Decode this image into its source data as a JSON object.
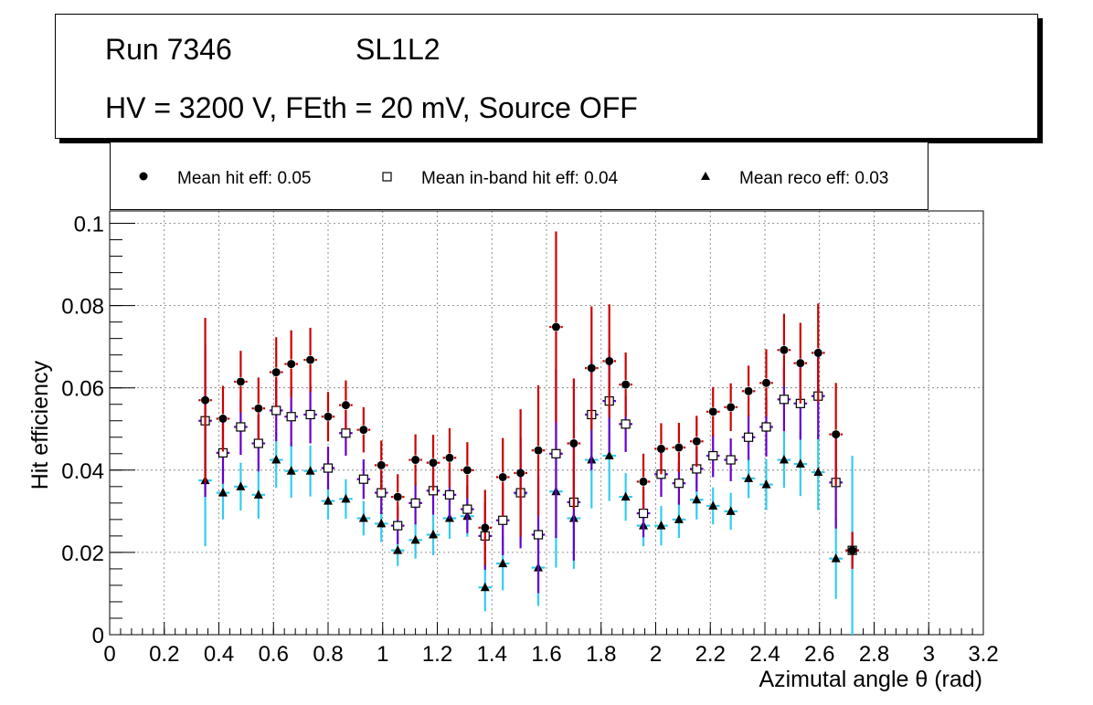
{
  "header": {
    "run": "Run 7346",
    "superlayer": "SL1L2",
    "conditions": "HV = 3200 V, FEth = 20 mV, Source OFF"
  },
  "legend": [
    {
      "marker": "filled-circle",
      "label": "Mean hit  eff: 0.05"
    },
    {
      "marker": "open-square",
      "label": "Mean in-band hit eff: 0.04"
    },
    {
      "marker": "filled-triangle",
      "label": "Mean reco eff: 0.03"
    }
  ],
  "colors": {
    "hit_error": "#cc0000",
    "inband_error": "#6600cc",
    "reco_error": "#33ccee",
    "marker": "#000000"
  },
  "chart_data": {
    "type": "scatter",
    "title": "",
    "xlabel": "Azimutal angle θ (rad)",
    "ylabel": "Hit efficiency",
    "xlim": [
      0,
      3.2
    ],
    "ylim": [
      0,
      0.103
    ],
    "xticks": [
      "0",
      "0.2",
      "0.4",
      "0.6",
      "0.8",
      "1",
      "1.2",
      "1.4",
      "1.6",
      "1.8",
      "2",
      "2.2",
      "2.4",
      "2.6",
      "2.8",
      "3",
      "3.2"
    ],
    "yticks": [
      "0",
      "0.02",
      "0.04",
      "0.06",
      "0.08",
      "0.1"
    ],
    "grid": true,
    "bin_half_width": 0.0245,
    "x": [
      0.35,
      0.415,
      0.48,
      0.545,
      0.61,
      0.665,
      0.735,
      0.8,
      0.865,
      0.93,
      0.995,
      1.055,
      1.12,
      1.185,
      1.245,
      1.31,
      1.375,
      1.44,
      1.505,
      1.57,
      1.635,
      1.7,
      1.765,
      1.83,
      1.89,
      1.955,
      2.02,
      2.085,
      2.15,
      2.21,
      2.275,
      2.34,
      2.405,
      2.47,
      2.53,
      2.595,
      2.66,
      2.72
    ],
    "series": [
      {
        "name": "Mean hit  eff: 0.05",
        "marker": "filled-circle",
        "values": [
          0.057,
          0.0525,
          0.0615,
          0.055,
          0.0638,
          0.0658,
          0.0668,
          0.053,
          0.0558,
          0.0498,
          0.0412,
          0.0335,
          0.0425,
          0.0418,
          0.043,
          0.04,
          0.026,
          0.0383,
          0.0393,
          0.0448,
          0.0748,
          0.0465,
          0.0648,
          0.0665,
          0.0608,
          0.0372,
          0.0452,
          0.0455,
          0.047,
          0.0542,
          0.0553,
          0.0592,
          0.0612,
          0.0692,
          0.066,
          0.0685,
          0.0487,
          0.0205
        ],
        "err": [
          0.02,
          0.008,
          0.0075,
          0.0075,
          0.0085,
          0.0082,
          0.0078,
          0.006,
          0.006,
          0.0055,
          0.006,
          0.0055,
          0.0062,
          0.0068,
          0.0072,
          0.0068,
          0.0092,
          0.0095,
          0.0155,
          0.0158,
          0.0232,
          0.0158,
          0.015,
          0.0138,
          0.0078,
          0.0068,
          0.0062,
          0.006,
          0.0062,
          0.006,
          0.0058,
          0.0062,
          0.0082,
          0.0088,
          0.0098,
          0.012,
          0.0125,
          0.0045
        ]
      },
      {
        "name": "Mean in-band hit eff: 0.04",
        "marker": "open-square",
        "values": [
          0.052,
          0.0442,
          0.0505,
          0.0465,
          0.0545,
          0.053,
          0.0535,
          0.0405,
          0.049,
          0.0378,
          0.0345,
          0.0265,
          0.032,
          0.035,
          0.034,
          0.0305,
          0.024,
          0.0278,
          0.0345,
          0.0243,
          0.044,
          0.0322,
          0.0535,
          0.0568,
          0.0512,
          0.0295,
          0.039,
          0.0368,
          0.0403,
          0.0435,
          0.0425,
          0.048,
          0.0505,
          0.0572,
          0.0562,
          0.058,
          0.037,
          0.0205
        ],
        "err": [
          0.0185,
          0.0075,
          0.0068,
          0.0068,
          0.0075,
          0.0072,
          0.007,
          0.0052,
          0.0055,
          0.0048,
          0.0052,
          0.0045,
          0.0052,
          0.0058,
          0.0058,
          0.0058,
          0.0082,
          0.0085,
          0.0135,
          0.0142,
          0.0205,
          0.0142,
          0.0135,
          0.0125,
          0.0068,
          0.0058,
          0.0055,
          0.0052,
          0.0055,
          0.0052,
          0.0052,
          0.0055,
          0.0072,
          0.0078,
          0.0088,
          0.0105,
          0.0112,
          0.004
        ]
      },
      {
        "name": "Mean reco eff: 0.03",
        "marker": "filled-triangle",
        "values": [
          0.0375,
          0.0345,
          0.036,
          0.034,
          0.0425,
          0.0398,
          0.0398,
          0.0325,
          0.033,
          0.0283,
          0.027,
          0.0205,
          0.023,
          0.0243,
          0.0283,
          0.0288,
          0.0115,
          0.0173,
          0.0343,
          0.0163,
          0.0348,
          0.0283,
          0.0425,
          0.0435,
          0.0335,
          0.0265,
          0.0265,
          0.028,
          0.0328,
          0.0313,
          0.03,
          0.038,
          0.0365,
          0.0425,
          0.0415,
          0.0395,
          0.0185,
          0.0205
        ]
      }
    ],
    "reco_err_lo": [
      0.016,
      0.0065,
      0.0058,
      0.0058,
      0.0068,
      0.0065,
      0.0062,
      0.0045,
      0.0048,
      0.0042,
      0.0045,
      0.0038,
      0.0045,
      0.005,
      0.005,
      0.005,
      0.0058,
      0.0065,
      0.0115,
      0.0093,
      0.0185,
      0.0123,
      0.0118,
      0.011,
      0.0058,
      0.005,
      0.0048,
      0.0045,
      0.0048,
      0.0045,
      0.0045,
      0.0048,
      0.0062,
      0.0068,
      0.0078,
      0.0092,
      0.0098,
      0.0205
    ],
    "reco_err_hi": [
      0.016,
      0.0065,
      0.0058,
      0.0058,
      0.0068,
      0.0065,
      0.0062,
      0.0045,
      0.0048,
      0.0042,
      0.0045,
      0.0038,
      0.0045,
      0.005,
      0.005,
      0.005,
      0.0058,
      0.0065,
      0.0115,
      0.0093,
      0.0185,
      0.0123,
      0.0118,
      0.011,
      0.0058,
      0.005,
      0.0048,
      0.0045,
      0.0048,
      0.0045,
      0.0045,
      0.0048,
      0.0062,
      0.0068,
      0.0078,
      0.0092,
      0.0098,
      0.023
    ]
  }
}
